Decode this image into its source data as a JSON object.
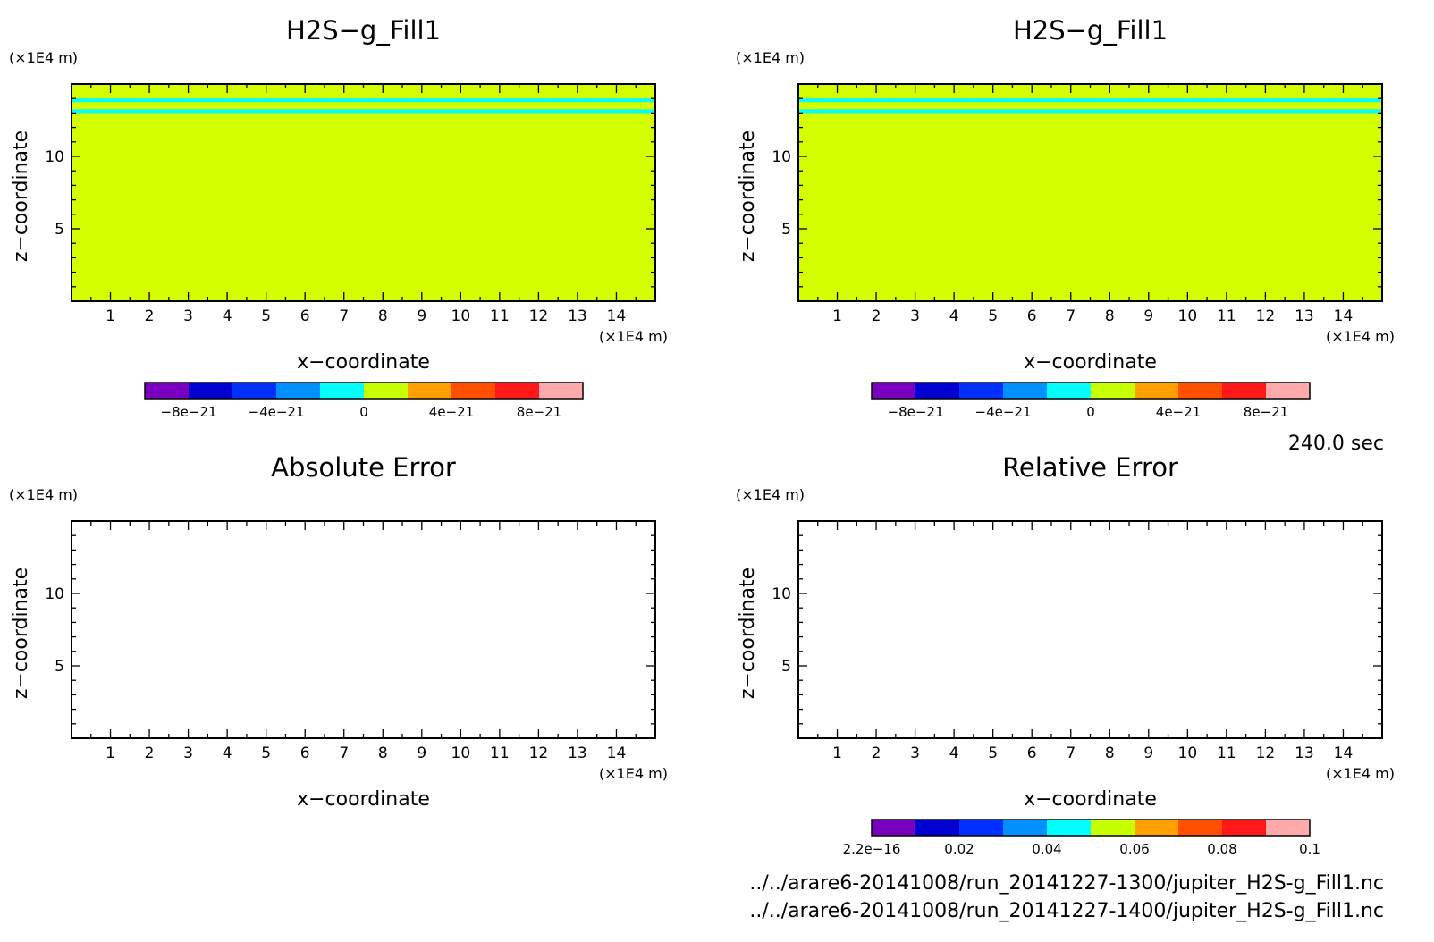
{
  "time_label": "240.0 sec",
  "files": [
    "../../arare6-20141008/run_20141227-1300/jupiter_H2S-g_Fill1.nc",
    "../../arare6-20141008/run_20141227-1400/jupiter_H2S-g_Fill1.nc"
  ],
  "colors": {
    "field_fill": "#d4ff00",
    "band": "#00ffff",
    "colorbar": [
      "#7a00c0",
      "#0000d0",
      "#0030ff",
      "#0090ff",
      "#00ffff",
      "#c8ff00",
      "#ffa000",
      "#ff5000",
      "#ff1818",
      "#ffaaaa"
    ]
  },
  "chart_data": [
    {
      "type": "heatmap",
      "title": "H2S−g_Fill1",
      "xlabel": "x−coordinate",
      "ylabel": "z−coordinate",
      "x_unit": "(×1E4 m)",
      "y_unit": "(×1E4 m)",
      "xlim": [
        0,
        15
      ],
      "ylim": [
        0,
        15
      ],
      "x_ticks": [
        "1",
        "2",
        "3",
        "4",
        "5",
        "6",
        "7",
        "8",
        "9",
        "10",
        "11",
        "12",
        "13",
        "14"
      ],
      "y_ticks": [
        "5",
        "10"
      ],
      "field": {
        "base_value": 0,
        "band_value": 0,
        "band_z": [
          13.0,
          14.0
        ]
      },
      "colorbar": {
        "ticks": [
          "−8e−21",
          "−4e−21",
          "0",
          "4e−21",
          "8e−21"
        ]
      }
    },
    {
      "type": "heatmap",
      "title": "H2S−g_Fill1",
      "xlabel": "x−coordinate",
      "ylabel": "z−coordinate",
      "x_unit": "(×1E4 m)",
      "y_unit": "(×1E4 m)",
      "xlim": [
        0,
        15
      ],
      "ylim": [
        0,
        15
      ],
      "x_ticks": [
        "1",
        "2",
        "3",
        "4",
        "5",
        "6",
        "7",
        "8",
        "9",
        "10",
        "11",
        "12",
        "13",
        "14"
      ],
      "y_ticks": [
        "5",
        "10"
      ],
      "field": {
        "base_value": 0,
        "band_value": 0,
        "band_z": [
          13.0,
          14.0
        ]
      },
      "colorbar": {
        "ticks": [
          "−8e−21",
          "−4e−21",
          "0",
          "4e−21",
          "8e−21"
        ]
      }
    },
    {
      "type": "heatmap",
      "title": "Absolute Error",
      "xlabel": "x−coordinate",
      "ylabel": "z−coordinate",
      "x_unit": "(×1E4 m)",
      "y_unit": "(×1E4 m)",
      "xlim": [
        0,
        15
      ],
      "ylim": [
        0,
        15
      ],
      "x_ticks": [
        "1",
        "2",
        "3",
        "4",
        "5",
        "6",
        "7",
        "8",
        "9",
        "10",
        "11",
        "12",
        "13",
        "14"
      ],
      "y_ticks": [
        "5",
        "10"
      ],
      "field": null,
      "colorbar": null
    },
    {
      "type": "heatmap",
      "title": "Relative Error",
      "xlabel": "x−coordinate",
      "ylabel": "z−coordinate",
      "x_unit": "(×1E4 m)",
      "y_unit": "(×1E4 m)",
      "xlim": [
        0,
        15
      ],
      "ylim": [
        0,
        15
      ],
      "x_ticks": [
        "1",
        "2",
        "3",
        "4",
        "5",
        "6",
        "7",
        "8",
        "9",
        "10",
        "11",
        "12",
        "13",
        "14"
      ],
      "y_ticks": [
        "5",
        "10"
      ],
      "field": null,
      "colorbar": {
        "ticks": [
          "2.2e−16",
          "0.02",
          "0.04",
          "0.06",
          "0.08",
          "0.1"
        ]
      }
    }
  ]
}
